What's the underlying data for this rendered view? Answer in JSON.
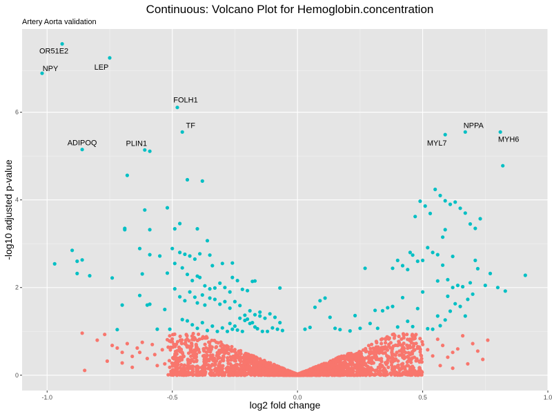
{
  "chart_data": {
    "type": "scatter",
    "title": "Continuous: Volcano Plot for Hemoglobin.concentration",
    "subtitle": "Artery Aorta validation",
    "xlabel": "log2 fold change",
    "ylabel": "-log10 adjusted p-value",
    "xlim": [
      -1.1,
      1.0
    ],
    "ylim": [
      -0.35,
      7.9
    ],
    "x_ticks": [
      -1.0,
      -0.5,
      0.0,
      0.5,
      1.0
    ],
    "x_tick_labels": [
      "-1.0",
      "-0.5",
      "0.0",
      "0.5",
      "1.0"
    ],
    "y_ticks": [
      0,
      2,
      4,
      6
    ],
    "y_tick_labels": [
      "0",
      "2",
      "4",
      "6"
    ],
    "grid": true,
    "legend": "none",
    "colors": {
      "significant": "#00BFC4",
      "not_significant": "#F8766D",
      "panel_background": "#E5E5E5",
      "grid_major": "#FFFFFF",
      "grid_minor": "#F2F2F2"
    },
    "labels": [
      {
        "text": "OR51E2",
        "x": -0.94,
        "y": 7.56
      },
      {
        "text": "LEP",
        "x": -0.75,
        "y": 7.24
      },
      {
        "text": "NPY",
        "x": -1.02,
        "y": 6.89
      },
      {
        "text": "FOLH1",
        "x": -0.48,
        "y": 6.11
      },
      {
        "text": "TF",
        "x": -0.46,
        "y": 5.55
      },
      {
        "text": "ADIPOQ",
        "x": -0.86,
        "y": 5.15
      },
      {
        "text": "PLIN1",
        "x": -0.61,
        "y": 5.14
      },
      {
        "text": "NPPA",
        "x": 0.67,
        "y": 5.55
      },
      {
        "text": "MYH6",
        "x": 0.81,
        "y": 5.55
      },
      {
        "text": "MYL7",
        "x": 0.59,
        "y": 5.49
      }
    ],
    "series": [
      {
        "color": "#00BFC4",
        "points": [
          [
            -0.94,
            7.56
          ],
          [
            -0.75,
            7.24
          ],
          [
            -1.02,
            6.89
          ],
          [
            -0.48,
            6.11
          ],
          [
            -0.46,
            5.55
          ],
          [
            -0.86,
            5.15
          ],
          [
            -0.61,
            5.14
          ],
          [
            -0.59,
            5.11
          ],
          [
            0.67,
            5.55
          ],
          [
            0.81,
            5.55
          ],
          [
            0.59,
            5.49
          ],
          [
            0.82,
            4.78
          ],
          [
            -0.68,
            4.56
          ],
          [
            -0.44,
            4.46
          ],
          [
            -0.38,
            4.43
          ],
          [
            -0.61,
            3.77
          ],
          [
            -0.52,
            3.82
          ],
          [
            -0.47,
            3.46
          ],
          [
            -0.49,
            3.34
          ],
          [
            -0.4,
            3.34
          ],
          [
            -0.59,
            3.32
          ],
          [
            -0.69,
            3.32
          ],
          [
            -0.69,
            3.35
          ],
          [
            -0.36,
            3.07
          ],
          [
            -0.63,
            2.89
          ],
          [
            -0.5,
            2.89
          ],
          [
            -0.47,
            2.8
          ],
          [
            -0.45,
            2.76
          ],
          [
            -0.43,
            2.72
          ],
          [
            -0.41,
            2.65
          ],
          [
            -0.39,
            2.77
          ],
          [
            -0.35,
            2.74
          ],
          [
            -0.34,
            2.5
          ],
          [
            -0.3,
            2.55
          ],
          [
            -0.26,
            2.56
          ],
          [
            -0.59,
            2.75
          ],
          [
            -0.55,
            2.72
          ],
          [
            -0.9,
            2.85
          ],
          [
            -0.88,
            2.6
          ],
          [
            -0.86,
            2.63
          ],
          [
            -0.97,
            2.54
          ],
          [
            -0.83,
            2.27
          ],
          [
            -0.88,
            2.32
          ],
          [
            -0.74,
            2.22
          ],
          [
            -0.62,
            2.31
          ],
          [
            -0.52,
            2.33
          ],
          [
            -0.49,
            2.55
          ],
          [
            -0.46,
            2.45
          ],
          [
            -0.44,
            2.3
          ],
          [
            -0.42,
            2.16
          ],
          [
            -0.4,
            2.26
          ],
          [
            -0.39,
            2.23
          ],
          [
            -0.37,
            2.04
          ],
          [
            -0.35,
            1.97
          ],
          [
            -0.33,
            1.99
          ],
          [
            -0.31,
            2.1
          ],
          [
            -0.29,
            2.0
          ],
          [
            -0.27,
            1.9
          ],
          [
            -0.26,
            2.23
          ],
          [
            -0.24,
            2.16
          ],
          [
            -0.22,
            1.96
          ],
          [
            -0.2,
            1.93
          ],
          [
            -0.18,
            2.14
          ],
          [
            -0.17,
            2.15
          ],
          [
            -0.07,
            1.99
          ],
          [
            -0.49,
            1.97
          ],
          [
            -0.47,
            1.79
          ],
          [
            -0.45,
            1.7
          ],
          [
            -0.43,
            1.9
          ],
          [
            -0.41,
            1.78
          ],
          [
            -0.4,
            1.65
          ],
          [
            -0.38,
            1.83
          ],
          [
            -0.37,
            1.6
          ],
          [
            -0.35,
            1.76
          ],
          [
            -0.33,
            1.73
          ],
          [
            -0.31,
            1.62
          ],
          [
            -0.29,
            1.68
          ],
          [
            -0.27,
            1.53
          ],
          [
            -0.25,
            1.68
          ],
          [
            -0.23,
            1.59
          ],
          [
            -0.21,
            1.37
          ],
          [
            -0.19,
            1.47
          ],
          [
            -0.17,
            1.38
          ],
          [
            -0.15,
            1.44
          ],
          [
            -0.13,
            1.3
          ],
          [
            -0.11,
            1.4
          ],
          [
            -0.09,
            1.32
          ],
          [
            -0.07,
            1.2
          ],
          [
            -0.63,
            1.82
          ],
          [
            -0.6,
            1.6
          ],
          [
            -0.59,
            1.62
          ],
          [
            -0.53,
            1.5
          ],
          [
            -0.56,
            1.05
          ],
          [
            -0.46,
            1.27
          ],
          [
            -0.44,
            1.24
          ],
          [
            -0.42,
            1.15
          ],
          [
            -0.4,
            1.07
          ],
          [
            -0.38,
            1.2
          ],
          [
            -0.36,
            1.02
          ],
          [
            -0.34,
            1.12
          ],
          [
            -0.32,
            1.0
          ],
          [
            -0.3,
            1.08
          ],
          [
            -0.28,
            1.0
          ],
          [
            -0.26,
            1.05
          ],
          [
            -0.25,
            1.12
          ],
          [
            -0.24,
            1.03
          ],
          [
            -0.22,
            1.0
          ],
          [
            -0.2,
            1.28
          ],
          [
            -0.18,
            1.2
          ],
          [
            -0.16,
            1.06
          ],
          [
            -0.14,
            1.0
          ],
          [
            -0.12,
            1.0
          ],
          [
            -0.1,
            1.08
          ],
          [
            -0.08,
            1.05
          ],
          [
            -0.06,
            1.02
          ],
          [
            -0.7,
            1.6
          ],
          [
            -0.72,
            1.04
          ],
          [
            -0.51,
            1.05
          ],
          [
            -0.27,
            1.18
          ],
          [
            -0.23,
            1.3
          ],
          [
            -0.21,
            1.25
          ],
          [
            -0.19,
            1.18
          ],
          [
            -0.17,
            1.1
          ],
          [
            -0.15,
            1.35
          ],
          [
            0.03,
            1.05
          ],
          [
            0.05,
            1.09
          ],
          [
            0.07,
            1.55
          ],
          [
            0.09,
            1.7
          ],
          [
            0.11,
            1.76
          ],
          [
            0.13,
            1.32
          ],
          [
            0.15,
            1.07
          ],
          [
            0.17,
            1.04
          ],
          [
            0.21,
            1.01
          ],
          [
            0.23,
            1.36
          ],
          [
            0.25,
            1.07
          ],
          [
            0.27,
            2.44
          ],
          [
            0.29,
            1.18
          ],
          [
            0.31,
            1.48
          ],
          [
            0.32,
            1.07
          ],
          [
            0.34,
            1.47
          ],
          [
            0.36,
            1.54
          ],
          [
            0.38,
            1.57
          ],
          [
            0.4,
            1.1
          ],
          [
            0.42,
            1.77
          ],
          [
            0.44,
            1.23
          ],
          [
            0.46,
            1.11
          ],
          [
            0.48,
            1.52
          ],
          [
            0.5,
            1.9
          ],
          [
            0.52,
            1.06
          ],
          [
            0.54,
            1.05
          ],
          [
            0.38,
            2.44
          ],
          [
            0.4,
            2.62
          ],
          [
            0.42,
            2.5
          ],
          [
            0.44,
            2.41
          ],
          [
            0.46,
            2.74
          ],
          [
            0.48,
            2.6
          ],
          [
            0.5,
            2.62
          ],
          [
            0.52,
            2.91
          ],
          [
            0.54,
            2.8
          ],
          [
            0.56,
            2.75
          ],
          [
            0.58,
            2.51
          ],
          [
            0.6,
            2.18
          ],
          [
            0.62,
            2.0
          ],
          [
            0.64,
            2.05
          ],
          [
            0.66,
            2.02
          ],
          [
            0.68,
            1.73
          ],
          [
            0.7,
            1.85
          ],
          [
            0.72,
            2.43
          ],
          [
            0.56,
            1.35
          ],
          [
            0.57,
            1.13
          ],
          [
            0.59,
            1.26
          ],
          [
            0.61,
            1.46
          ],
          [
            0.63,
            1.63
          ],
          [
            0.65,
            1.57
          ],
          [
            0.67,
            1.35
          ],
          [
            0.69,
            2.11
          ],
          [
            0.71,
            2.62
          ],
          [
            0.45,
            2.8
          ],
          [
            0.47,
            3.62
          ],
          [
            0.49,
            3.97
          ],
          [
            0.51,
            3.86
          ],
          [
            0.53,
            3.69
          ],
          [
            0.55,
            4.24
          ],
          [
            0.57,
            4.1
          ],
          [
            0.59,
            3.98
          ],
          [
            0.61,
            3.9
          ],
          [
            0.63,
            3.95
          ],
          [
            0.65,
            3.81
          ],
          [
            0.67,
            3.7
          ],
          [
            0.69,
            3.45
          ],
          [
            0.71,
            3.35
          ],
          [
            0.58,
            3.15
          ],
          [
            0.59,
            3.32
          ],
          [
            0.73,
            3.57
          ],
          [
            0.75,
            2.05
          ],
          [
            0.77,
            2.32
          ],
          [
            0.8,
            2.0
          ],
          [
            0.83,
            1.92
          ],
          [
            0.91,
            2.28
          ],
          [
            0.56,
            2.15
          ],
          [
            0.6,
            1.8
          ],
          [
            0.62,
            2.71
          ]
        ]
      },
      {
        "color": "#F8766D",
        "points": [
          [
            -0.86,
            0.96
          ],
          [
            -0.77,
            0.93
          ],
          [
            -0.74,
            0.68
          ],
          [
            -0.72,
            0.62
          ],
          [
            -0.7,
            0.52
          ],
          [
            -0.68,
            0.72
          ],
          [
            -0.66,
            0.43
          ],
          [
            -0.64,
            0.62
          ],
          [
            -0.62,
            0.75
          ],
          [
            -0.6,
            0.38
          ],
          [
            -0.58,
            0.7
          ],
          [
            -0.56,
            0.22
          ],
          [
            -0.54,
            0.58
          ],
          [
            -0.52,
            0.81
          ],
          [
            -0.85,
            0.11
          ],
          [
            -0.8,
            0.8
          ],
          [
            -0.76,
            0.32
          ],
          [
            -0.7,
            0.28
          ],
          [
            -0.66,
            0.18
          ],
          [
            -0.63,
            0.52
          ],
          [
            -0.57,
            0.47
          ],
          [
            -0.53,
            0.26
          ],
          [
            0.56,
            0.82
          ],
          [
            0.58,
            0.68
          ],
          [
            0.6,
            0.41
          ],
          [
            0.62,
            0.52
          ],
          [
            0.64,
            0.6
          ],
          [
            0.66,
            0.9
          ],
          [
            0.68,
            0.26
          ],
          [
            0.7,
            0.72
          ],
          [
            0.72,
            0.55
          ],
          [
            0.76,
            0.8
          ],
          [
            0.74,
            0.36
          ],
          [
            0.62,
            0.16
          ],
          [
            0.54,
            0.44
          ],
          [
            0.57,
            0.22
          ],
          [
            0.5,
            0.7
          ],
          [
            0.52,
            0.58
          ]
        ]
      }
    ]
  }
}
